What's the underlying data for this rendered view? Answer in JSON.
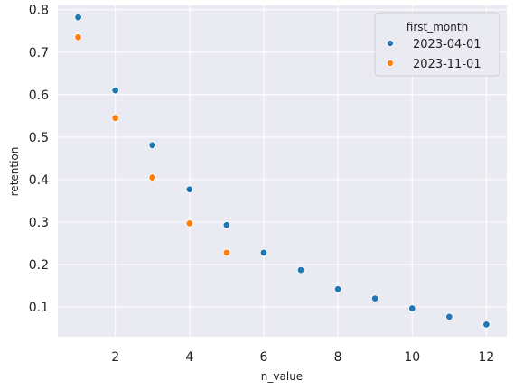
{
  "chart_data": {
    "type": "scatter",
    "xlabel": "n_value",
    "ylabel": "retention",
    "xlim": [
      0.45,
      12.55
    ],
    "ylim": [
      0.03,
      0.81
    ],
    "x_ticks": [
      2,
      4,
      6,
      8,
      10,
      12
    ],
    "y_ticks": [
      0.1,
      0.2,
      0.3,
      0.4,
      0.5,
      0.6,
      0.7,
      0.8
    ],
    "grid": true,
    "legend": {
      "title": "first_month",
      "position": "top-right"
    },
    "series": [
      {
        "name": "2023-04-01",
        "color": "#1f77b4",
        "x": [
          1,
          2,
          3,
          4,
          5,
          6,
          7,
          8,
          9,
          10,
          11,
          12
        ],
        "y": [
          0.782,
          0.61,
          0.481,
          0.377,
          0.293,
          0.228,
          0.187,
          0.142,
          0.12,
          0.097,
          0.077,
          0.059
        ]
      },
      {
        "name": "2023-11-01",
        "color": "#ff7f0e",
        "x": [
          1,
          2,
          3,
          4,
          5
        ],
        "y": [
          0.735,
          0.545,
          0.405,
          0.297,
          0.228
        ]
      }
    ]
  }
}
